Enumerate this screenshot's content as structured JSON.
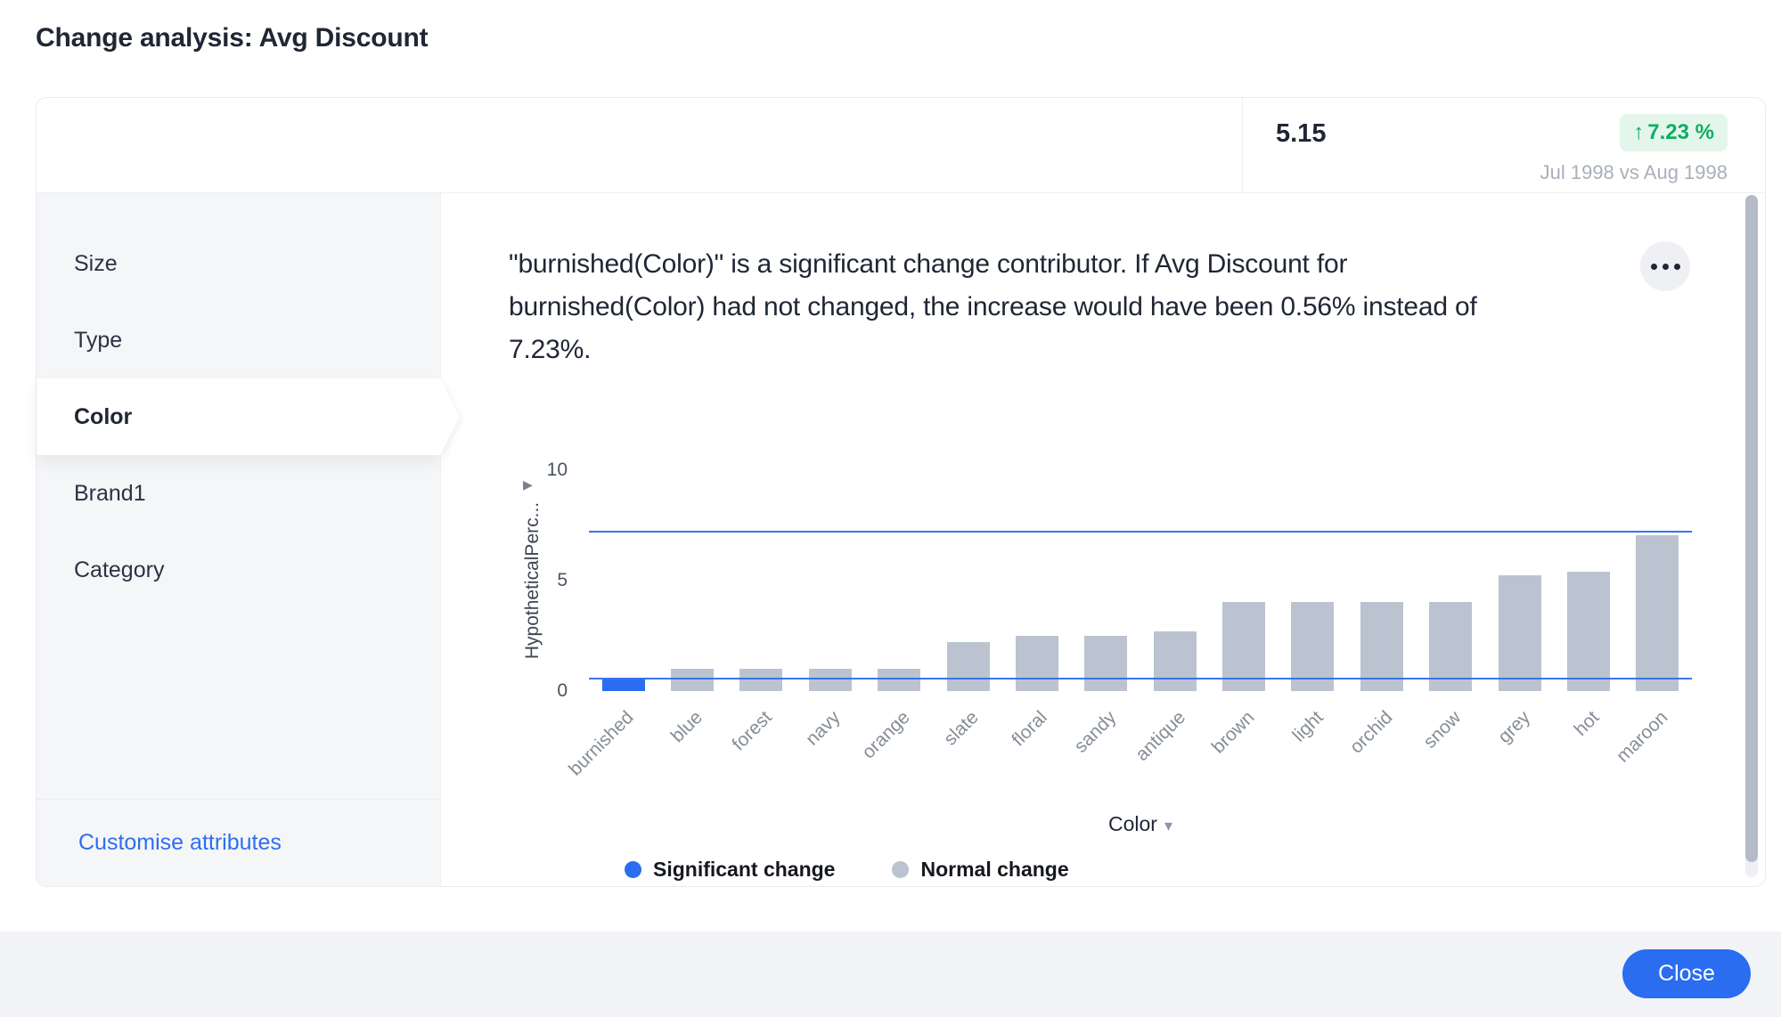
{
  "title": "Change analysis: Avg Discount",
  "header": {
    "metric_value": "5.15",
    "change_arrow": "↑",
    "change_value": "7.23 %",
    "period": "Jul 1998 vs Aug 1998"
  },
  "sidebar": {
    "items": [
      {
        "label": "Size",
        "selected": false
      },
      {
        "label": "Type",
        "selected": false
      },
      {
        "label": "Color",
        "selected": true
      },
      {
        "label": "Brand1",
        "selected": false
      },
      {
        "label": "Category",
        "selected": false
      }
    ],
    "customise_label": "Customise attributes"
  },
  "insight": {
    "text": "\"burnished(Color)\" is a significant change contributor. If Avg Discount for burnished(Color) had not changed, the increase would have been 0.56% instead of 7.23%."
  },
  "chart_data": {
    "type": "bar",
    "categories": [
      "burnished",
      "blue",
      "forest",
      "navy",
      "orange",
      "slate",
      "floral",
      "sandy",
      "antique",
      "brown",
      "light",
      "orchid",
      "snow",
      "grey",
      "hot",
      "maroon"
    ],
    "values": [
      0.56,
      1.0,
      1.0,
      1.0,
      1.0,
      2.2,
      2.5,
      2.5,
      2.7,
      4.05,
      4.05,
      4.05,
      4.05,
      5.25,
      5.4,
      7.05
    ],
    "significant_categories": [
      "burnished"
    ],
    "ylabel": "HypotheticalPerc...",
    "xlabel": "Color",
    "ylim": [
      0,
      10
    ],
    "yticks": [
      0,
      5,
      10
    ],
    "reference_lines": [
      7.23,
      0.56
    ],
    "legend": [
      {
        "label": "Significant change",
        "color": "#2b6df0"
      },
      {
        "label": "Normal change",
        "color": "#bac3cf"
      }
    ],
    "colors": {
      "significant": "#2b6df0",
      "normal": "#bac3cf",
      "reference_line": "#3b72f2"
    },
    "legend_position": "bottom",
    "grid": false
  },
  "icons": {
    "more_options": "•••",
    "axis_expand": "▶",
    "dropdown_caret": "▼"
  },
  "footer": {
    "close_label": "Close"
  },
  "colors": {
    "accent_blue": "#2b6df0",
    "positive_green": "#0fae61",
    "badge_background": "#e4f6ec",
    "sidebar_background": "#f5f6f8",
    "text_dark": "#1f2634",
    "text_muted": "#a9afbb"
  }
}
